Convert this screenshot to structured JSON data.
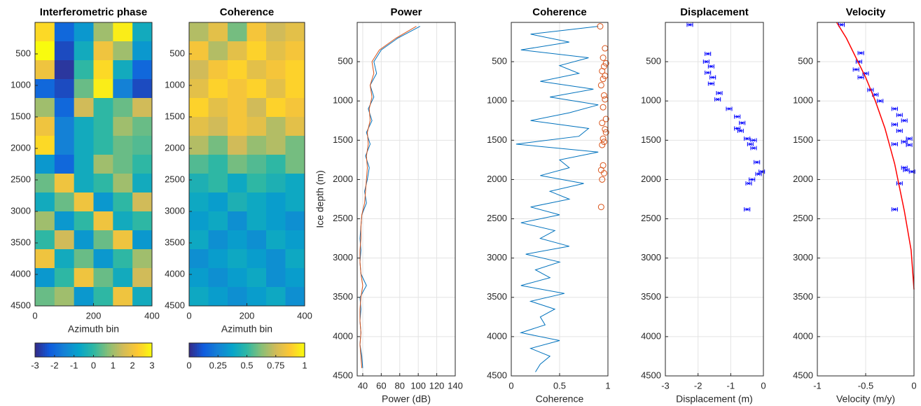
{
  "chart_data": [
    {
      "type": "heatmap",
      "title": "Interferometric phase",
      "x_label": "Azimuth bin",
      "xlim": [
        0,
        400
      ],
      "xticks": [
        0,
        200,
        400
      ],
      "ylim": [
        0,
        4500
      ],
      "yticks": [
        500,
        1000,
        1500,
        2000,
        2500,
        3000,
        3500,
        4000,
        4500
      ],
      "clim": [
        -3,
        3
      ],
      "cticks": [
        -3,
        -2,
        -1,
        0,
        1,
        2,
        3
      ],
      "z": [
        [
          2.5,
          -2,
          -1,
          1,
          2.8,
          -0.5
        ],
        [
          3,
          -2.5,
          -0.5,
          2,
          1,
          -1
        ],
        [
          2,
          -2.8,
          0,
          2.5,
          -0.5,
          -2
        ],
        [
          -2,
          -2.5,
          0.5,
          2.8,
          -1.5,
          -2.5
        ],
        [
          1,
          -2,
          1.5,
          0,
          0.5,
          1.5
        ],
        [
          2,
          -1.5,
          -0.5,
          0,
          1,
          0.5
        ],
        [
          2.5,
          -1.5,
          -0.5,
          0,
          0.5,
          0.3
        ],
        [
          -1,
          -2,
          -0.5,
          1,
          0.5,
          0
        ],
        [
          0.5,
          2,
          -0.5,
          0,
          1,
          -0.5
        ],
        [
          -0.5,
          0.5,
          2,
          -1,
          0,
          1.5
        ],
        [
          1,
          -1,
          0,
          2,
          -0.5,
          0
        ],
        [
          0,
          1.5,
          -1,
          0.5,
          2,
          -1
        ],
        [
          2,
          -0.5,
          0.5,
          -1,
          0,
          1
        ],
        [
          -1,
          0,
          2,
          0.5,
          -0.5,
          1.5
        ],
        [
          0.5,
          1,
          -1,
          0,
          2,
          -0.5
        ]
      ]
    },
    {
      "type": "heatmap",
      "title": "Coherence",
      "x_label": "Azimuth bin",
      "xlim": [
        0,
        400
      ],
      "xticks": [
        0,
        200,
        400
      ],
      "ylim": [
        0,
        4500
      ],
      "yticks": [
        500,
        1000,
        1500,
        2000,
        2500,
        3000,
        3500,
        4000,
        4500
      ],
      "clim": [
        0,
        1
      ],
      "cticks": [
        0,
        0.25,
        0.5,
        0.75,
        1
      ],
      "z": [
        [
          0.7,
          0.8,
          0.6,
          0.85,
          0.75,
          0.8
        ],
        [
          0.85,
          0.7,
          0.8,
          0.9,
          0.8,
          0.85
        ],
        [
          0.75,
          0.85,
          0.9,
          0.8,
          0.85,
          0.9
        ],
        [
          0.8,
          0.9,
          0.85,
          0.9,
          0.8,
          0.9
        ],
        [
          0.9,
          0.8,
          0.85,
          0.75,
          0.9,
          0.85
        ],
        [
          0.8,
          0.75,
          0.85,
          0.8,
          0.7,
          0.8
        ],
        [
          0.7,
          0.6,
          0.75,
          0.65,
          0.7,
          0.6
        ],
        [
          0.55,
          0.5,
          0.6,
          0.55,
          0.5,
          0.6
        ],
        [
          0.45,
          0.5,
          0.4,
          0.5,
          0.45,
          0.4
        ],
        [
          0.4,
          0.35,
          0.45,
          0.4,
          0.35,
          0.4
        ],
        [
          0.35,
          0.4,
          0.3,
          0.4,
          0.35,
          0.3
        ],
        [
          0.4,
          0.3,
          0.35,
          0.3,
          0.4,
          0.35
        ],
        [
          0.3,
          0.35,
          0.4,
          0.35,
          0.3,
          0.4
        ],
        [
          0.35,
          0.3,
          0.35,
          0.4,
          0.3,
          0.35
        ],
        [
          0.4,
          0.35,
          0.3,
          0.35,
          0.4,
          0.3
        ]
      ]
    },
    {
      "type": "line",
      "title": "Power",
      "x_label": "Power (dB)",
      "y_label": "Ice depth (m)",
      "xlim": [
        34,
        140
      ],
      "xticks": [
        40,
        60,
        80,
        100,
        120,
        140
      ],
      "ylim": [
        0,
        4500
      ],
      "yticks": [
        500,
        1000,
        1500,
        2000,
        2500,
        3000,
        3500,
        4000,
        4500
      ],
      "grid": true,
      "series": [
        {
          "color": "#0072bd",
          "marker": "none",
          "y": [
            50,
            200,
            350,
            500,
            650,
            800,
            950,
            1100,
            1250,
            1400,
            1550,
            1700,
            1850,
            2000,
            2150,
            2300,
            2450,
            2600,
            2750,
            2900,
            3050,
            3200,
            3350,
            3500,
            3650,
            3800,
            3950,
            4100,
            4250,
            4400
          ],
          "values": [
            102,
            78,
            60,
            52,
            55,
            48,
            52,
            46,
            50,
            44,
            48,
            43,
            47,
            45,
            42,
            44,
            39,
            38,
            37,
            38,
            37,
            38,
            44,
            37,
            38,
            37,
            38,
            37,
            39,
            40
          ]
        },
        {
          "color": "#d95319",
          "marker": "none",
          "y": [
            50,
            200,
            350,
            500,
            650,
            800,
            950,
            1100,
            1250,
            1400,
            1550,
            1700,
            1850,
            2000,
            2150,
            2300,
            2450,
            2600,
            2750,
            2900,
            3050,
            3200,
            3350,
            3500,
            3650,
            3800,
            3950,
            4100,
            4250,
            4400
          ],
          "values": [
            98,
            76,
            58,
            50,
            52,
            48,
            50,
            47,
            48,
            45,
            46,
            44,
            45,
            44,
            43,
            42,
            39,
            38,
            38,
            37,
            37,
            38,
            40,
            38,
            37,
            37,
            38,
            37,
            38,
            39
          ]
        }
      ]
    },
    {
      "type": "line",
      "title": "Coherence",
      "x_label": "Coherence",
      "xlim": [
        0,
        1
      ],
      "xticks": [
        0,
        0.5,
        1
      ],
      "ylim": [
        0,
        4500
      ],
      "yticks": [
        500,
        1000,
        1500,
        2000,
        2500,
        3000,
        3500,
        4000,
        4500
      ],
      "grid": true,
      "series": [
        {
          "color": "#0072bd",
          "marker": "none",
          "y": [
            50,
            150,
            250,
            350,
            450,
            550,
            650,
            750,
            850,
            950,
            1050,
            1150,
            1250,
            1350,
            1450,
            1550,
            1650,
            1750,
            1850,
            1950,
            2050,
            2150,
            2250,
            2350,
            2450,
            2550,
            2650,
            2750,
            2850,
            2950,
            3050,
            3150,
            3250,
            3350,
            3450,
            3550,
            3650,
            3750,
            3850,
            3950,
            4050,
            4150,
            4250,
            4350,
            4450
          ],
          "values": [
            0.9,
            0.2,
            0.6,
            0.1,
            0.8,
            0.5,
            0.7,
            0.3,
            0.85,
            0.4,
            0.9,
            0.6,
            0.2,
            0.8,
            0.7,
            0.05,
            0.9,
            0.5,
            0.6,
            0.3,
            0.75,
            0.4,
            0.6,
            0.2,
            0.5,
            0.1,
            0.45,
            0.3,
            0.6,
            0.15,
            0.5,
            0.25,
            0.4,
            0.1,
            0.55,
            0.2,
            0.45,
            0.3,
            0.35,
            0.1,
            0.5,
            0.2,
            0.4,
            0.3,
            0.25
          ]
        },
        {
          "color": "#d95319",
          "marker": "circle",
          "y": [
            50,
            330,
            450,
            520,
            560,
            620,
            680,
            720,
            800,
            930,
            980,
            1080,
            1230,
            1280,
            1360,
            1400,
            1480,
            1520,
            1560,
            1820,
            1880,
            1920,
            2000,
            2350
          ],
          "values": [
            0.92,
            0.97,
            0.95,
            0.98,
            0.96,
            0.94,
            0.97,
            0.95,
            0.93,
            0.96,
            0.97,
            0.95,
            0.98,
            0.94,
            0.97,
            0.98,
            0.95,
            0.96,
            0.94,
            0.95,
            0.93,
            0.96,
            0.94,
            0.93
          ]
        }
      ]
    },
    {
      "type": "scatter",
      "title": "Displacement",
      "x_label": "Displacement (m)",
      "xlim": [
        -3,
        0
      ],
      "xticks": [
        -3,
        -2,
        -1,
        0
      ],
      "ylim": [
        0,
        4500
      ],
      "yticks": [
        500,
        1000,
        1500,
        2000,
        2500,
        3000,
        3500,
        4000,
        4500
      ],
      "grid": true,
      "series": [
        {
          "color": "#0000ff",
          "marker": "errorbar",
          "x": [
            -2.25,
            -1.7,
            -1.75,
            -1.6,
            -1.7,
            -1.55,
            -1.6,
            -1.35,
            -1.4,
            -1.05,
            -0.8,
            -0.65,
            -0.8,
            -0.7,
            -0.5,
            -0.3,
            -0.4,
            -0.3,
            -0.2,
            -0.05,
            -0.15,
            -0.35,
            -0.45,
            -0.5
          ],
          "y": [
            30,
            400,
            500,
            560,
            640,
            700,
            780,
            900,
            980,
            1100,
            1200,
            1280,
            1350,
            1380,
            1480,
            1500,
            1550,
            1600,
            1780,
            1900,
            1930,
            2000,
            2050,
            2380
          ]
        }
      ]
    },
    {
      "type": "scatter",
      "title": "Velocity",
      "x_label": "Velocity (m/y)",
      "xlim": [
        -1,
        0
      ],
      "xticks": [
        -1,
        -0.5,
        0
      ],
      "ylim": [
        0,
        4500
      ],
      "yticks": [
        500,
        1000,
        1500,
        2000,
        2500,
        3000,
        3500,
        4000,
        4500
      ],
      "grid": true,
      "series": [
        {
          "color": "#0000ff",
          "marker": "errorbar",
          "x": [
            -0.75,
            -0.55,
            -0.57,
            -0.6,
            -0.5,
            -0.55,
            -0.45,
            -0.4,
            -0.35,
            -0.2,
            -0.15,
            -0.1,
            -0.2,
            -0.15,
            -0.05,
            -0.1,
            -0.05,
            -0.2,
            -0.02,
            -0.08,
            -0.1,
            -0.15,
            -0.2
          ],
          "y": [
            30,
            390,
            500,
            600,
            650,
            700,
            860,
            920,
            1000,
            1100,
            1180,
            1250,
            1300,
            1380,
            1480,
            1520,
            1560,
            1550,
            1900,
            1880,
            1850,
            2050,
            2380
          ]
        },
        {
          "color": "#ff0000",
          "marker": "line",
          "x": [
            -0.8,
            -0.7,
            -0.6,
            -0.5,
            -0.4,
            -0.3,
            -0.2,
            -0.1,
            -0.03,
            0
          ],
          "y": [
            0,
            200,
            450,
            700,
            1000,
            1350,
            1800,
            2400,
            2900,
            3400
          ]
        }
      ]
    }
  ]
}
